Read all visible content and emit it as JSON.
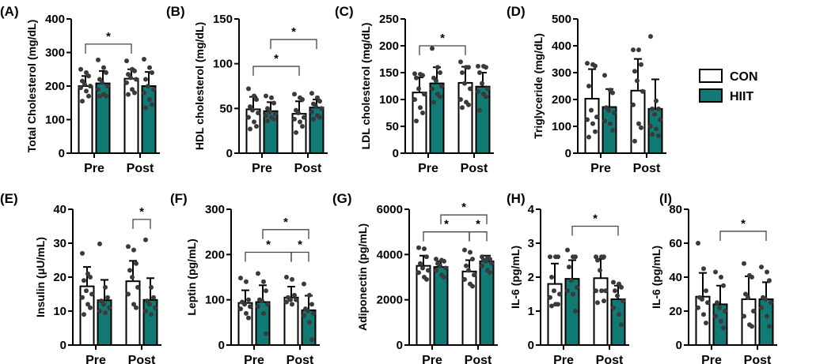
{
  "colors": {
    "con": "#ffffff",
    "hiit": "#127a74",
    "point": "#3a3a3a",
    "axis": "#000000"
  },
  "legend": {
    "placement": "right",
    "items": [
      {
        "label": "CON",
        "color": "#ffffff"
      },
      {
        "label": "HIIT",
        "color": "#127a74"
      }
    ]
  },
  "chart_data": [
    {
      "panel": "(A)",
      "type": "bar",
      "ylabel": "Total Cholesterol (mg/dL)",
      "categories": [
        "Pre",
        "Post"
      ],
      "ylim": [
        0,
        400
      ],
      "ticks": [
        0,
        100,
        200,
        300,
        400
      ],
      "series": [
        {
          "name": "CON",
          "means": [
            200,
            222
          ],
          "sd": [
            30,
            28
          ],
          "points": [
            [
              250,
              240,
              230,
              215,
              205,
              200,
              195,
              185,
              170,
              155
            ],
            [
              275,
              250,
              245,
              235,
              225,
              220,
              210,
              190,
              180,
              175
            ]
          ]
        },
        {
          "name": "HIIT",
          "means": [
            208,
            200
          ],
          "sd": [
            37,
            42
          ],
          "points": [
            [
              278,
              255,
              240,
              220,
              210,
              200,
              190,
              175,
              170,
              170
            ],
            [
              280,
              255,
              240,
              220,
              200,
              190,
              180,
              160,
              145,
              135
            ]
          ]
        }
      ],
      "significance": [
        {
          "from": "Pre-CON",
          "to": "Post-CON",
          "y": 325,
          "label": "*"
        }
      ]
    },
    {
      "panel": "(B)",
      "type": "bar",
      "ylabel": "HDL cholesterol (mg/dL)",
      "categories": [
        "Pre",
        "Post"
      ],
      "ylim": [
        0,
        150
      ],
      "ticks": [
        0,
        50,
        100,
        150
      ],
      "series": [
        {
          "name": "CON",
          "means": [
            49,
            44
          ],
          "sd": [
            14,
            14
          ],
          "points": [
            [
              72,
              64,
              60,
              52,
              48,
              45,
              40,
              35,
              30,
              27
            ],
            [
              66,
              62,
              60,
              48,
              45,
              40,
              38,
              35,
              30,
              23
            ]
          ]
        },
        {
          "name": "HIIT",
          "means": [
            47,
            51
          ],
          "sd": [
            10,
            9
          ],
          "points": [
            [
              64,
              62,
              56,
              50,
              46,
              44,
              42,
              40,
              38,
              36
            ],
            [
              67,
              62,
              58,
              55,
              52,
              50,
              46,
              42,
              40,
              38
            ]
          ]
        }
      ],
      "significance": [
        {
          "from": "Pre-CON",
          "to": "Post-CON",
          "y": 97,
          "label": "*"
        },
        {
          "from": "Pre-HIIT",
          "to": "Post-HIIT",
          "y": 127,
          "label": "*"
        }
      ]
    },
    {
      "panel": "(C)",
      "type": "bar",
      "ylabel": "LDL cholesterol (mg/dL)",
      "categories": [
        "Pre",
        "Post"
      ],
      "ylim": [
        0,
        250
      ],
      "ticks": [
        0,
        50,
        100,
        150,
        200,
        250
      ],
      "series": [
        {
          "name": "CON",
          "means": [
            113,
            131
          ],
          "sd": [
            28,
            30
          ],
          "points": [
            [
              148,
              147,
              145,
              140,
              120,
              110,
              100,
              85,
              75,
              60
            ],
            [
              170,
              160,
              160,
              150,
              130,
              120,
              100,
              95,
              90,
              85
            ]
          ]
        },
        {
          "name": "HIIT",
          "means": [
            130,
            124
          ],
          "sd": [
            30,
            26
          ],
          "points": [
            [
              195,
              160,
              150,
              140,
              135,
              125,
              120,
              110,
              105,
              95
            ],
            [
              162,
              162,
              160,
              150,
              130,
              120,
              115,
              110,
              105,
              80
            ]
          ]
        }
      ],
      "significance": [
        {
          "from": "Pre-CON",
          "to": "Post-CON",
          "y": 200,
          "label": "*"
        }
      ]
    },
    {
      "panel": "(D)",
      "type": "bar",
      "ylabel": "Triglyceride (mg/dL)",
      "categories": [
        "Pre",
        "Post"
      ],
      "ylim": [
        0,
        500
      ],
      "ticks": [
        0,
        100,
        200,
        300,
        400,
        500
      ],
      "series": [
        {
          "name": "CON",
          "means": [
            203,
            233
          ],
          "sd": [
            110,
            118
          ],
          "points": [
            [
              335,
              330,
              325,
              250,
              160,
              135,
              125,
              110,
              80,
              60
            ],
            [
              385,
              385,
              330,
              305,
              270,
              230,
              180,
              110,
              95,
              45
            ]
          ]
        },
        {
          "name": "HIIT",
          "means": [
            172,
            165
          ],
          "sd": [
            67,
            110
          ],
          "points": [
            [
              290,
              235,
              225,
              170,
              160,
              150,
              120,
              110,
              85
            ],
            [
              435,
              195,
              165,
              165,
              145,
              125,
              100,
              90,
              65,
              70
            ]
          ]
        }
      ],
      "significance": []
    },
    {
      "panel": "(E)",
      "type": "bar",
      "ylabel": "Insulin (μU/mL)",
      "categories": [
        "Pre",
        "Post"
      ],
      "ylim": [
        0,
        40
      ],
      "ticks": [
        0,
        10,
        20,
        30,
        40
      ],
      "series": [
        {
          "name": "CON",
          "means": [
            17.3,
            18.8
          ],
          "sd": [
            5.7,
            6
          ],
          "points": [
            [
              27,
              21,
              20,
              19,
              16,
              15,
              14,
              12,
              11,
              9
            ],
            [
              29,
              28,
              24,
              22,
              20,
              17,
              15,
              12,
              11
            ]
          ]
        },
        {
          "name": "HIIT",
          "means": [
            13.2,
            13.3
          ],
          "sd": [
            6,
            6.4
          ],
          "points": [
            [
              29.8,
              17,
              14,
              13,
              12,
              11,
              10,
              9.5
            ],
            [
              31,
              17,
              14,
              13,
              12,
              11,
              10,
              9
            ]
          ]
        }
      ],
      "significance": [
        {
          "from": "Post-CON",
          "to": "Post-HIIT",
          "y": 37,
          "label": "*"
        }
      ]
    },
    {
      "panel": "(F)",
      "type": "bar",
      "ylabel": "Leptin (pg/mL)",
      "categories": [
        "Pre",
        "Post"
      ],
      "ylim": [
        0,
        300
      ],
      "ticks": [
        0,
        100,
        200,
        300
      ],
      "series": [
        {
          "name": "CON",
          "means": [
            93,
            105
          ],
          "sd": [
            28,
            24
          ],
          "points": [
            [
              148,
              140,
              100,
              95,
              90,
              85,
              80,
              70,
              60
            ],
            [
              150,
              145,
              110,
              105,
              100,
              100,
              95,
              90
            ]
          ]
        },
        {
          "name": "HIIT",
          "means": [
            95,
            77
          ],
          "sd": [
            37,
            32
          ],
          "points": [
            [
              158,
              140,
              120,
              100,
              98,
              90,
              85,
              70,
              25
            ],
            [
              135,
              110,
              90,
              80,
              75,
              70,
              65,
              50,
              12
            ]
          ]
        }
      ],
      "significance": [
        {
          "from": "Pre-CON",
          "to": "Post-CON",
          "y": 205,
          "label": "*"
        },
        {
          "from": "Post-CON",
          "to": "Post-HIIT",
          "y": 205,
          "label": "*"
        },
        {
          "from": "Pre-HIIT",
          "to": "Post-HIIT",
          "y": 255,
          "label": "*"
        }
      ]
    },
    {
      "panel": "(G)",
      "type": "bar",
      "ylabel": "Adiponectin (pg/mL)",
      "categories": [
        "Pre",
        "Post"
      ],
      "ylim": [
        0,
        6000
      ],
      "ticks": [
        0,
        2000,
        4000,
        6000
      ],
      "series": [
        {
          "name": "CON",
          "means": [
            3500,
            3250
          ],
          "sd": [
            450,
            500
          ],
          "points": [
            [
              4300,
              4250,
              3900,
              3600,
              3400,
              3300,
              3200,
              3000,
              2900
            ],
            [
              4200,
              4100,
              3800,
              3500,
              3300,
              3100,
              2900,
              2700,
              2600
            ]
          ]
        },
        {
          "name": "HIIT",
          "means": [
            3450,
            3700
          ],
          "sd": [
            250,
            250
          ],
          "points": [
            [
              3800,
              3750,
              3700,
              3600,
              3500,
              3400,
              3300,
              3100,
              3000
            ],
            [
              3900,
              3850,
              3800,
              3750,
              3700,
              3600,
              3500,
              3300,
              3200
            ]
          ]
        }
      ],
      "significance": [
        {
          "from": "Pre-CON",
          "to": "Post-CON",
          "y": 5000,
          "label": "*"
        },
        {
          "from": "Post-CON",
          "to": "Post-HIIT",
          "y": 5000,
          "label": "*"
        },
        {
          "from": "Pre-HIIT",
          "to": "Post-HIIT",
          "y": 5750,
          "label": "*"
        }
      ]
    },
    {
      "panel": "(H)",
      "type": "bar",
      "ylabel": "IL-6 (pg/mL)",
      "categories": [
        "Pre",
        "Post"
      ],
      "ylim": [
        0,
        4
      ],
      "ticks": [
        0,
        1,
        2,
        3,
        4
      ],
      "series": [
        {
          "name": "CON",
          "means": [
            1.8,
            1.97
          ],
          "sd": [
            0.6,
            0.57
          ],
          "points": [
            [
              2.6,
              2.6,
              2.6,
              2.0,
              1.6,
              1.5,
              1.4,
              1.2,
              1.2,
              1.15
            ],
            [
              2.6,
              2.6,
              2.6,
              2.5,
              2.2,
              1.6,
              1.6,
              1.6,
              1.3,
              1.25
            ]
          ]
        },
        {
          "name": "HIIT",
          "means": [
            1.95,
            1.35
          ],
          "sd": [
            0.55,
            0.4
          ],
          "points": [
            [
              2.8,
              2.6,
              2.6,
              2.3,
              1.9,
              1.7,
              1.6,
              1.5,
              1.0
            ],
            [
              1.85,
              1.8,
              1.7,
              1.6,
              1.45,
              1.3,
              1.1,
              0.9,
              0.6
            ]
          ]
        }
      ],
      "significance": [
        {
          "from": "Pre-HIIT",
          "to": "Post-HIIT",
          "y": 3.5,
          "label": "*"
        }
      ]
    },
    {
      "panel": "(I)",
      "type": "bar",
      "ylabel": "IL-6 (pg/mL)",
      "categories": [
        "Pre",
        "Post"
      ],
      "ylim": [
        0,
        80
      ],
      "ticks": [
        0,
        20,
        40,
        60,
        80
      ],
      "series": [
        {
          "name": "CON",
          "means": [
            28.5,
            27
          ],
          "sd": [
            14,
            13.5
          ],
          "points": [
            [
              60,
              45,
              32,
              28,
              27,
              25,
              22,
              18,
              13
            ],
            [
              48,
              41,
              40,
              30,
              28,
              20,
              17,
              12,
              11
            ]
          ]
        },
        {
          "name": "HIIT",
          "means": [
            24,
            27
          ],
          "sd": [
            11,
            10
          ],
          "points": [
            [
              43,
              40,
              35,
              25,
              22,
              20,
              17,
              14,
              10
            ],
            [
              46,
              43,
              38,
              28,
              27,
              25,
              22,
              17,
              11
            ]
          ]
        }
      ],
      "significance": [
        {
          "from": "Pre-HIIT",
          "to": "Post-HIIT",
          "y": 67,
          "label": "*"
        }
      ]
    }
  ]
}
